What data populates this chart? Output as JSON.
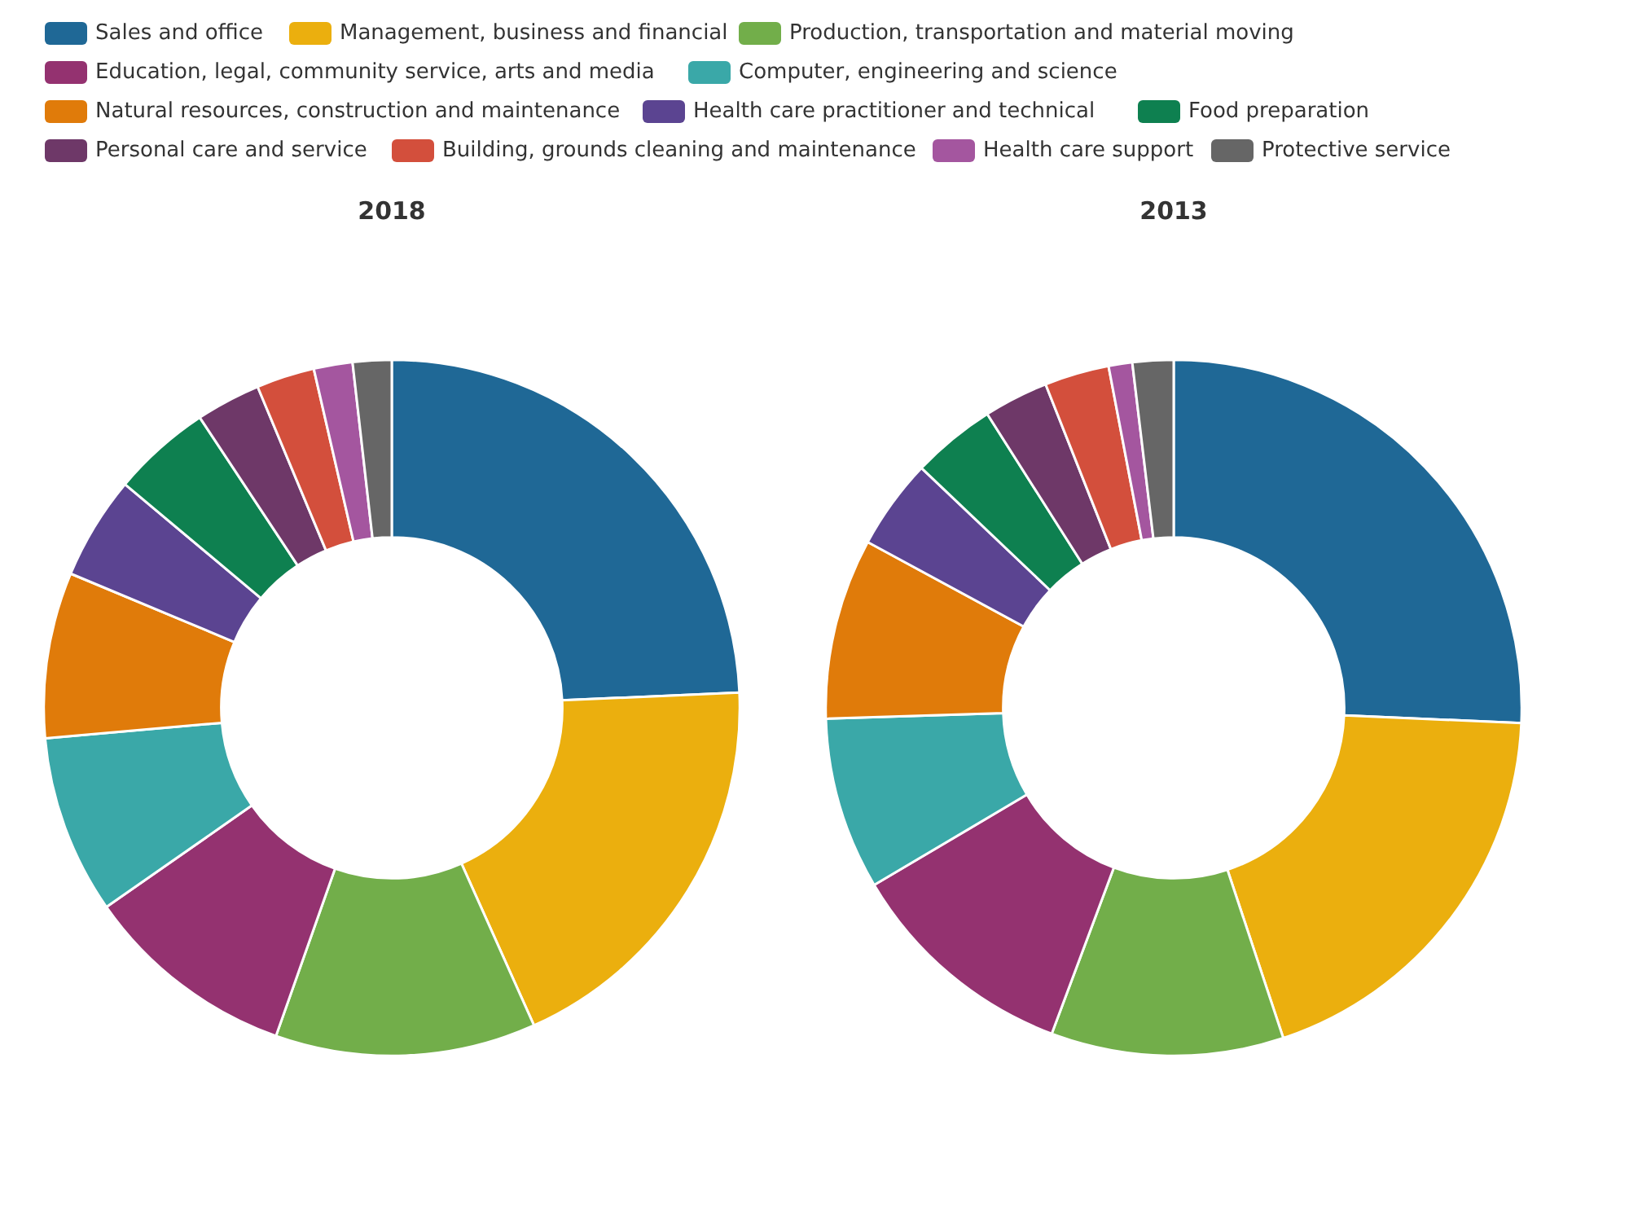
{
  "chart_data": [
    {
      "type": "donut",
      "title": "2018",
      "legend": "top",
      "categories": [
        "Sales and office",
        "Management, business and financial",
        "Production, transportation and material moving",
        "Education, legal, community service, arts and media",
        "Computer, engineering and science",
        "Natural resources, construction and maintenance",
        "Health care practitioner and technical",
        "Food preparation",
        "Personal care and service",
        "Building, grounds cleaning and maintenance",
        "Health care support",
        "Protective service"
      ],
      "values": [
        24.3,
        19.0,
        12.1,
        9.9,
        8.3,
        7.7,
        4.8,
        4.6,
        3.0,
        2.7,
        1.8,
        1.8
      ],
      "colors": [
        "#1f6896",
        "#ebaf0e",
        "#72ae4a",
        "#943270",
        "#3aa8a8",
        "#e07b0a",
        "#5b4491",
        "#0e8050",
        "#6e3868",
        "#d34f3c",
        "#a4569f",
        "#666666"
      ]
    },
    {
      "type": "donut",
      "title": "2013",
      "categories": [
        null,
        null,
        null,
        null,
        null,
        null,
        null,
        null,
        null,
        null,
        null,
        null
      ],
      "values": [
        25.7,
        19.2,
        10.8,
        10.8,
        8.0,
        8.4,
        4.2,
        3.9,
        3.0,
        3.0,
        1.1,
        1.9
      ],
      "colors": [
        "#1f6896",
        "#ebaf0e",
        "#72ae4a",
        "#943270",
        "#3aa8a8",
        "#e07b0a",
        "#5b4491",
        "#0e8050",
        "#6e3868",
        "#d34f3c",
        "#a4569f",
        "#666666"
      ]
    }
  ]
}
